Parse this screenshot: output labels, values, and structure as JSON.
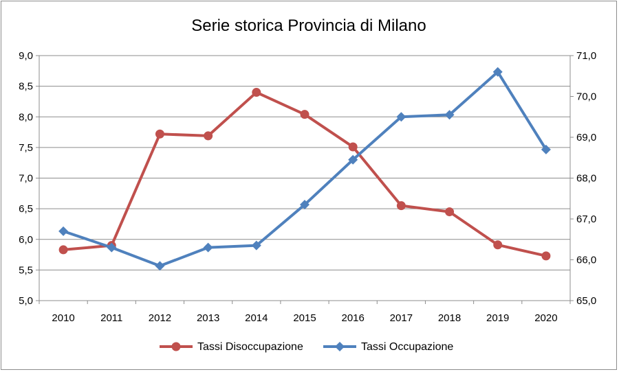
{
  "chart_data": {
    "type": "line",
    "title": "Serie storica Provincia di Milano",
    "categories": [
      "2010",
      "2011",
      "2012",
      "2013",
      "2014",
      "2015",
      "2016",
      "2017",
      "2018",
      "2019",
      "2020"
    ],
    "y_left": {
      "ticks": [
        "5,0",
        "5,5",
        "6,0",
        "6,5",
        "7,0",
        "7,5",
        "8,0",
        "8,5",
        "9,0"
      ],
      "ylim": [
        5.0,
        9.0
      ]
    },
    "y_right": {
      "ticks": [
        "65,0",
        "66,0",
        "67,0",
        "68,0",
        "69,0",
        "70,0",
        "71,0"
      ],
      "ylim": [
        65.0,
        71.0
      ]
    },
    "grid": true,
    "legend": "bottom",
    "series": [
      {
        "name": "Tassi Disoccupazione",
        "axis": "left",
        "color": "#c0504d",
        "marker": "circle",
        "values": [
          5.83,
          5.9,
          7.72,
          7.69,
          8.4,
          8.04,
          7.51,
          6.55,
          6.45,
          5.91,
          5.73
        ]
      },
      {
        "name": "Tassi Occupazione",
        "axis": "right",
        "color": "#4f81bd",
        "marker": "diamond",
        "values": [
          66.7,
          66.3,
          65.85,
          66.3,
          66.35,
          67.35,
          68.45,
          69.5,
          69.55,
          70.6,
          68.7
        ]
      }
    ]
  }
}
